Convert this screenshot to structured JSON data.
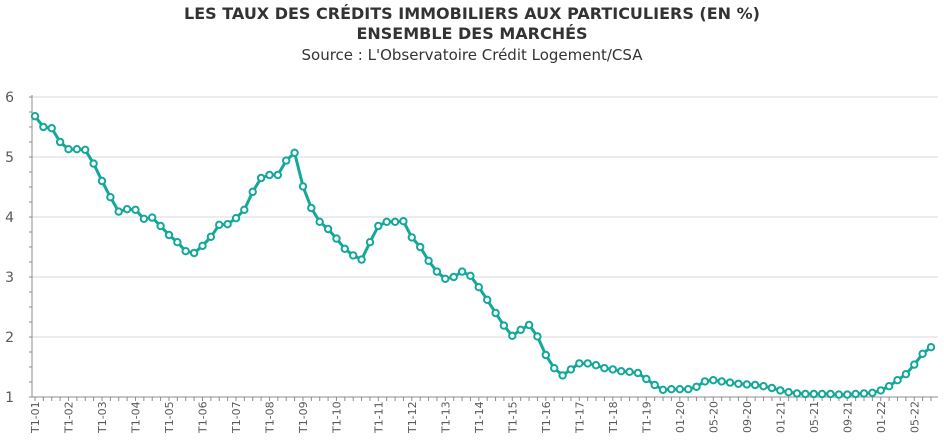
{
  "chart_data": {
    "type": "line",
    "title_line1": "LES TAUX DES CRÉDITS IMMOBILIERS AUX PARTICULIERS (EN %)",
    "title_line2": "ENSEMBLE DES MARCHÉS",
    "subtitle": "Source : L'Observatoire Crédit Logement/CSA",
    "xlabel": "",
    "ylabel": "",
    "ylim": [
      1,
      6
    ],
    "y_ticks": [
      "1",
      "2",
      "3",
      "4",
      "5",
      "6"
    ],
    "grid": true,
    "line_color": "#14a89a",
    "x_tick_labels": [
      "T1-01",
      "T1-02",
      "T1-03",
      "T1-04",
      "T1-05",
      "T1-06",
      "T1-07",
      "T1-08",
      "T1-09",
      "T1-10",
      "T1-11",
      "T1-12",
      "T1-13",
      "T1-14",
      "T1-15",
      "T1-16",
      "T1-17",
      "T1-18",
      "T1-19",
      "01-20",
      "05-20",
      "09-20",
      "01-21",
      "05-21",
      "09-21",
      "01-22",
      "05-22"
    ],
    "series": [
      {
        "values": [
          5.68,
          5.5,
          5.48,
          5.25,
          5.13,
          5.13,
          5.12,
          4.89,
          4.6,
          4.33,
          4.09,
          4.13,
          4.12,
          3.97,
          3.99,
          3.85,
          3.7,
          3.58,
          3.43,
          3.4,
          3.52,
          3.67,
          3.87,
          3.88,
          3.98,
          4.12,
          4.42,
          4.65,
          4.7,
          4.7,
          4.94,
          5.07,
          4.51,
          4.15,
          3.92,
          3.8,
          3.64,
          3.47,
          3.36,
          3.29,
          3.58,
          3.85,
          3.92,
          3.92,
          3.93,
          3.66,
          3.5,
          3.27,
          3.09,
          2.97,
          3.0,
          3.09,
          3.02,
          2.83,
          2.62,
          2.4,
          2.19,
          2.02,
          2.12,
          2.2,
          2.01,
          1.7,
          1.48,
          1.36,
          1.46,
          1.56,
          1.56,
          1.53,
          1.48,
          1.46,
          1.43,
          1.42,
          1.4,
          1.3,
          1.2,
          1.12,
          1.13,
          1.13,
          1.13,
          1.17,
          1.26,
          1.28,
          1.26,
          1.24,
          1.22,
          1.21,
          1.2,
          1.18,
          1.15,
          1.11,
          1.08,
          1.06,
          1.05,
          1.05,
          1.05,
          1.05,
          1.04,
          1.04,
          1.05,
          1.06,
          1.07,
          1.11,
          1.18,
          1.28,
          1.38,
          1.54,
          1.72,
          1.83
        ]
      }
    ]
  }
}
